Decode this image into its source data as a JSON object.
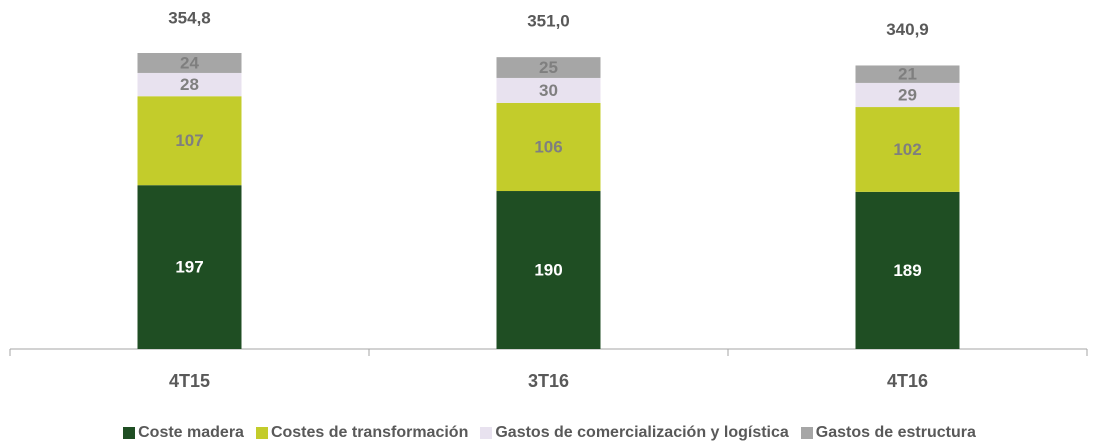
{
  "chart_data": {
    "type": "stacked-bar",
    "categories": [
      "4T15",
      "3T16",
      "4T16"
    ],
    "series": [
      {
        "name": "Coste madera",
        "color": "#1f4e23",
        "label_color": "#ffffff",
        "values": [
          197,
          190,
          189
        ]
      },
      {
        "name": "Costes de transformación",
        "color": "#c3cc2b",
        "label_color": "#7f7f7f",
        "values": [
          107,
          106,
          102
        ]
      },
      {
        "name": "Gastos de comercialización y logística",
        "color": "#e8e2ef",
        "label_color": "#7f7f7f",
        "values": [
          28,
          30,
          29
        ]
      },
      {
        "name": "Gastos de estructura",
        "color": "#a6a6a6",
        "label_color": "#7f7f7f",
        "values": [
          24,
          25,
          21
        ]
      }
    ],
    "totals": {
      "values": [
        354.8,
        351.0,
        340.9
      ],
      "value_labels": [
        "354,8",
        "351,0",
        "340,9"
      ]
    }
  }
}
